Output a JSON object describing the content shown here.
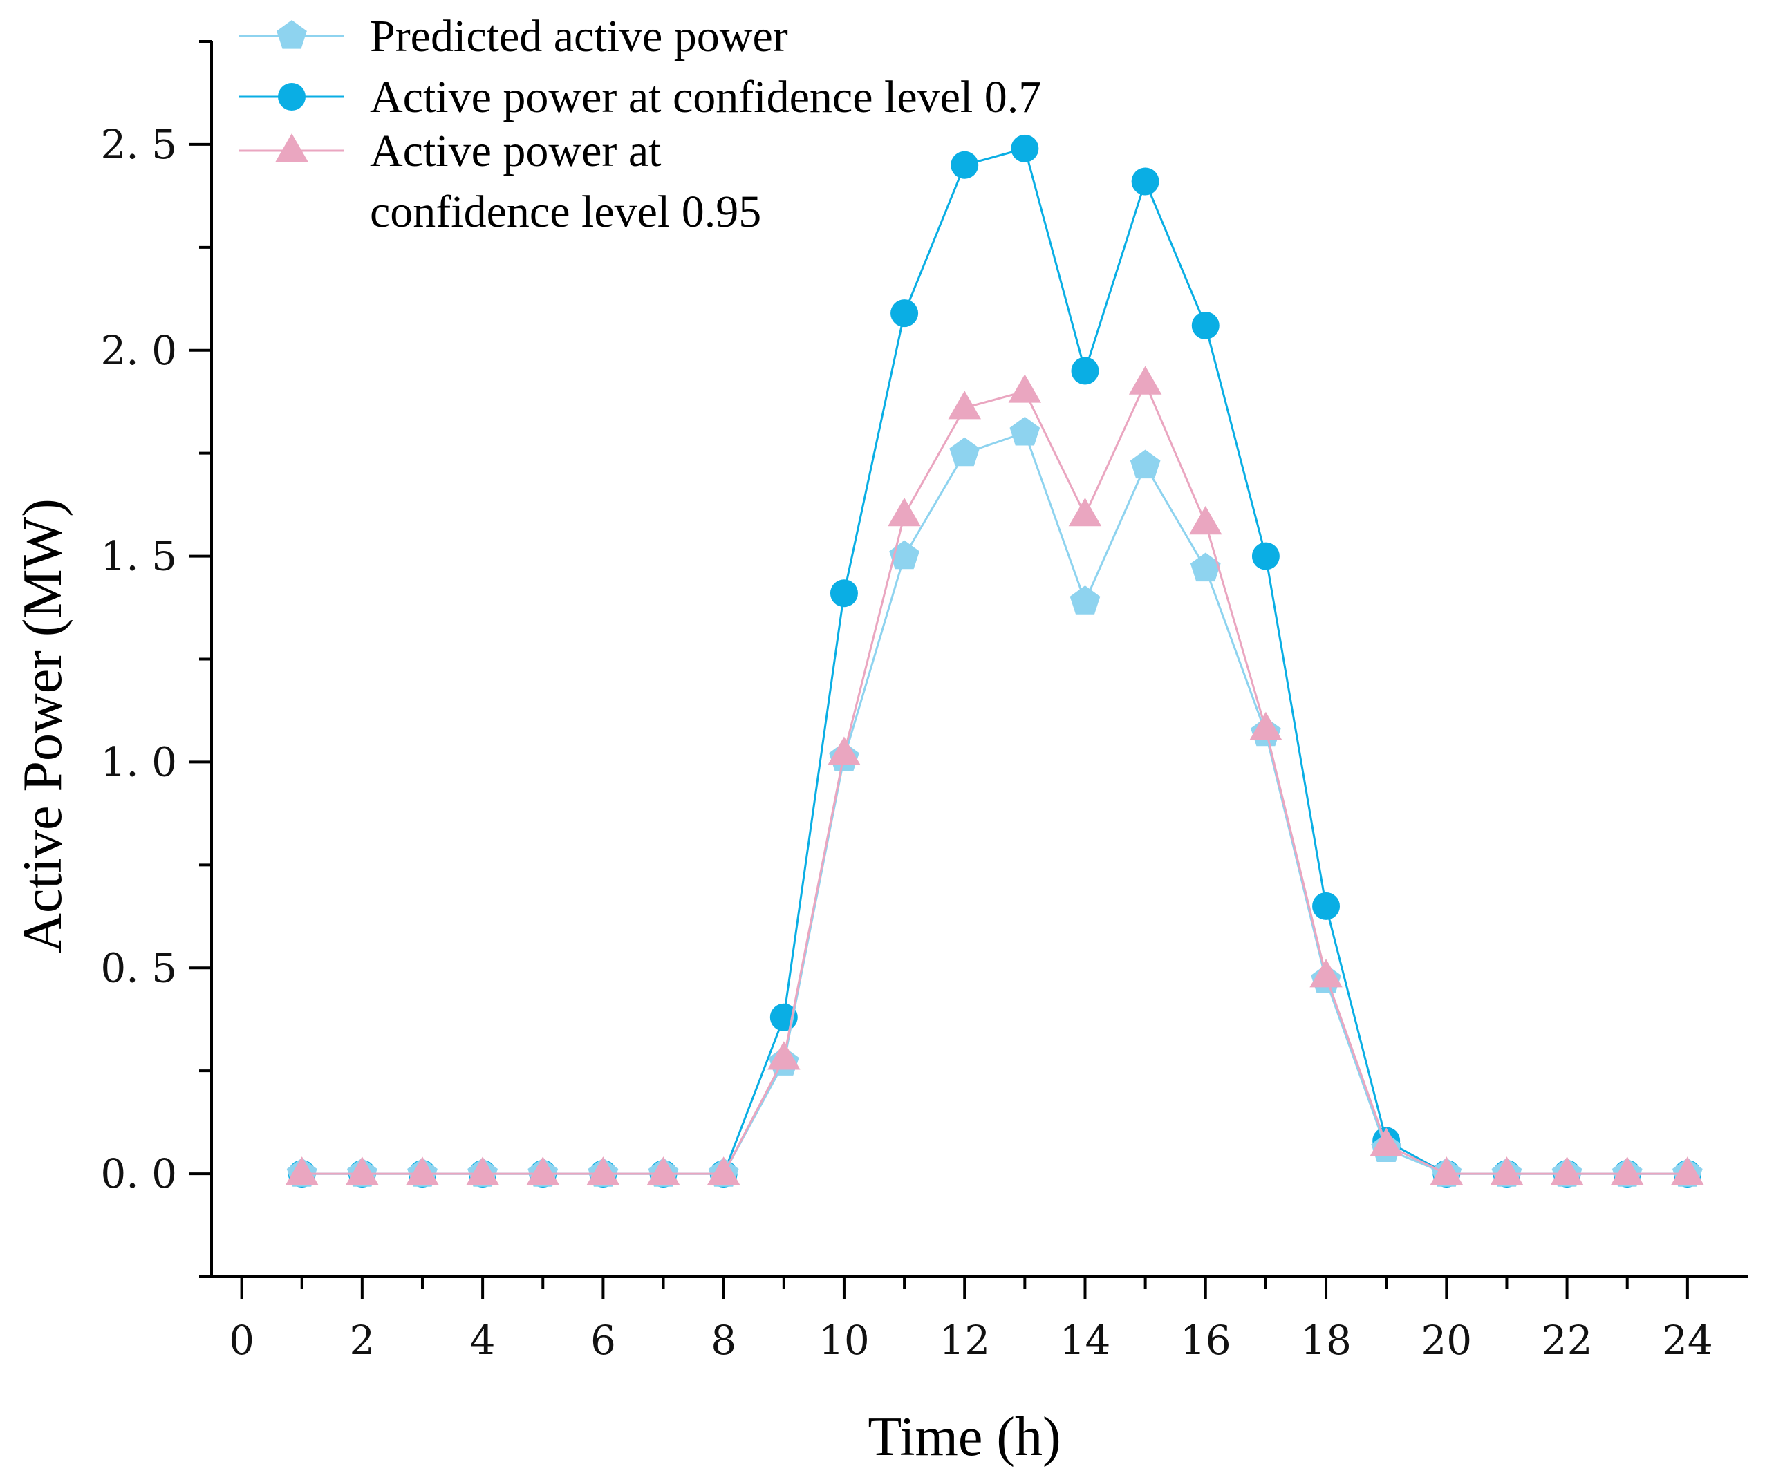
{
  "chart_data": {
    "type": "line",
    "title": "",
    "xlabel": "Time (h)",
    "ylabel": "Active Power (MW)",
    "xlim": [
      -0.5,
      25
    ],
    "ylim": [
      -0.25,
      2.75
    ],
    "x_major_ticks": [
      0,
      2,
      4,
      6,
      8,
      10,
      12,
      14,
      16,
      18,
      20,
      22,
      24
    ],
    "x_minor_ticks": [
      1,
      3,
      5,
      7,
      9,
      11,
      13,
      15,
      17,
      19,
      21,
      23
    ],
    "y_major_ticks": [
      0.0,
      0.5,
      1.0,
      1.5,
      2.0,
      2.5
    ],
    "y_minor_ticks": [
      -0.25,
      0.25,
      0.75,
      1.25,
      1.75,
      2.25,
      2.75
    ],
    "x_tick_labels": [
      "0",
      "2",
      "4",
      "6",
      "8",
      "10",
      "12",
      "14",
      "16",
      "18",
      "20",
      "22",
      "24"
    ],
    "y_tick_labels": [
      "0. 0",
      "0. 5",
      "1. 0",
      "1. 5",
      "2. 0",
      "2. 5"
    ],
    "grid": false,
    "legend_position": "top-left",
    "x": [
      1,
      2,
      3,
      4,
      5,
      6,
      7,
      8,
      9,
      10,
      11,
      12,
      13,
      14,
      15,
      16,
      17,
      18,
      19,
      20,
      21,
      22,
      23,
      24
    ],
    "series": [
      {
        "name": "Predicted active power",
        "marker": "pentagon",
        "color": "#8ed3ef",
        "values": [
          0,
          0,
          0,
          0,
          0,
          0,
          0,
          0,
          0.27,
          1.01,
          1.5,
          1.75,
          1.8,
          1.39,
          1.72,
          1.47,
          1.07,
          0.47,
          0.06,
          0,
          0,
          0,
          0,
          0
        ]
      },
      {
        "name": "Active power at confidence level 0.7",
        "marker": "circle",
        "color": "#0aaee4",
        "values": [
          0,
          0,
          0,
          0,
          0,
          0,
          0,
          0,
          0.38,
          1.41,
          2.09,
          2.45,
          2.49,
          1.95,
          2.41,
          2.06,
          1.5,
          0.65,
          0.08,
          0,
          0,
          0,
          0,
          0
        ]
      },
      {
        "name": "Active power at confidence level 0.95",
        "marker": "triangle",
        "color": "#eaa6c0",
        "legend_lines": [
          "Active power at",
          "confidence level 0.95"
        ],
        "values": [
          0,
          0,
          0,
          0,
          0,
          0,
          0,
          0,
          0.28,
          1.02,
          1.6,
          1.86,
          1.9,
          1.6,
          1.92,
          1.58,
          1.08,
          0.48,
          0.07,
          0,
          0,
          0,
          0,
          0
        ]
      }
    ]
  }
}
